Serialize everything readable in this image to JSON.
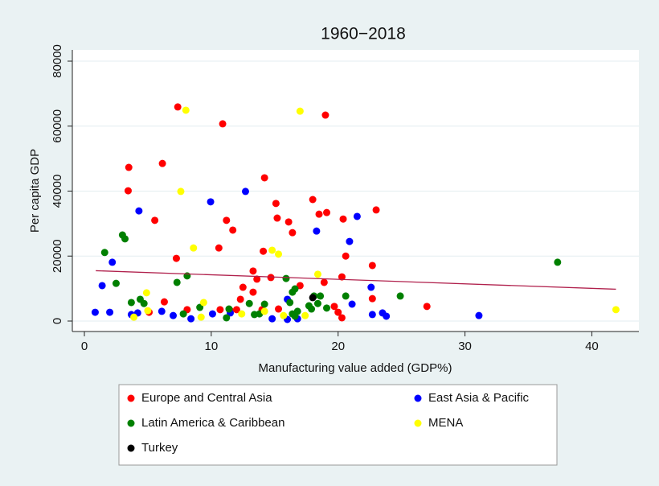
{
  "chart_data": {
    "type": "scatter",
    "title": "1960−2018",
    "x_label": "Manufacturing value added (GDP%)",
    "y_label": "Per capita GDP",
    "xlim": [
      0,
      42
    ],
    "ylim": [
      0,
      80000
    ],
    "xticks": [
      0,
      10,
      20,
      30,
      40
    ],
    "yticks": [
      0,
      20000,
      40000,
      60000,
      80000
    ],
    "grid": true,
    "legend": "bottom",
    "series": [
      {
        "name": "Europe and Central Asia",
        "color": "#ff0000",
        "x": [
          7.36,
          10.9,
          19.0,
          3.5,
          6.15,
          3.45,
          14.2,
          15.1,
          18.0,
          5.55,
          11.2,
          15.2,
          16.1,
          16.4,
          18.5,
          19.1,
          20.4,
          23.0,
          11.7,
          7.25,
          10.6,
          14.1,
          20.6,
          13.3,
          13.6,
          14.7,
          22.7,
          20.3,
          12.5,
          13.3,
          17.0,
          18.9,
          12.3,
          22.7,
          6.3,
          8.1,
          10.7,
          11.5,
          12.0,
          14.0,
          5.1,
          19.7,
          20.0,
          20.3,
          27.0,
          15.3
        ],
        "values": [
          65900,
          60700,
          63400,
          47300,
          48500,
          40100,
          44100,
          36200,
          37400,
          31000,
          31000,
          31700,
          30500,
          27200,
          32900,
          33400,
          31400,
          34200,
          28000,
          19300,
          22500,
          21500,
          20000,
          15400,
          12900,
          13400,
          17100,
          13600,
          10400,
          8900,
          10900,
          11900,
          6700,
          6900,
          5900,
          3500,
          3500,
          3200,
          3500,
          3500,
          2700,
          4500,
          2700,
          1000,
          4500,
          3700
        ]
      },
      {
        "name": "East Asia & Pacific",
        "color": "#0000ff",
        "x": [
          12.7,
          9.95,
          4.3,
          21.5,
          18.3,
          20.9,
          2.2,
          1.4,
          16.0,
          21.1,
          22.6,
          0.85,
          2.0,
          3.7,
          4.2,
          6.1,
          7.0,
          8.4,
          10.1,
          11.5,
          14.8,
          16.0,
          16.8,
          22.7,
          23.5,
          23.8,
          31.1
        ],
        "values": [
          39900,
          36700,
          33900,
          32200,
          27700,
          24500,
          18100,
          10900,
          6700,
          5200,
          10400,
          2700,
          2700,
          2000,
          2500,
          3000,
          1700,
          700,
          2200,
          2500,
          700,
          500,
          700,
          2000,
          2500,
          1500,
          1700
        ]
      },
      {
        "name": "Latin America & Caribbean",
        "color": "#008000",
        "x": [
          1.6,
          3.0,
          3.2,
          2.5,
          3.7,
          4.4,
          4.7,
          7.3,
          8.1,
          9.1,
          11.2,
          11.4,
          13.0,
          13.4,
          13.8,
          14.2,
          15.9,
          16.2,
          16.4,
          16.6,
          16.4,
          16.8,
          17.7,
          17.9,
          18.1,
          18.4,
          18.6,
          19.1,
          20.6,
          24.9,
          37.3,
          7.8,
          16.6
        ],
        "values": [
          21100,
          26500,
          25300,
          11600,
          5700,
          6700,
          5400,
          11900,
          13900,
          4200,
          1000,
          3700,
          5400,
          2000,
          2200,
          5200,
          13100,
          5700,
          8900,
          9900,
          2200,
          3000,
          4700,
          3700,
          7700,
          5400,
          7700,
          4000,
          7700,
          7700,
          18100,
          2200,
          1500
        ]
      },
      {
        "name": "MENA",
        "color": "#ffff00",
        "x": [
          8.0,
          17.0,
          7.6,
          8.6,
          14.8,
          15.3,
          18.4,
          4.9,
          9.4,
          3.9,
          9.2,
          5.0,
          12.4,
          14.2,
          15.7,
          17.4,
          41.9
        ],
        "values": [
          64900,
          64600,
          39900,
          22500,
          21800,
          20600,
          14400,
          8700,
          5700,
          1200,
          1200,
          3200,
          2200,
          3000,
          1700,
          1700,
          3500
        ]
      },
      {
        "name": "Turkey",
        "color": "#000000",
        "x": [
          18.0
        ],
        "values": [
          7200
        ]
      }
    ],
    "fit": {
      "color": "#b0204c",
      "x": [
        0.9,
        41.9
      ],
      "values": [
        15500,
        9800
      ]
    }
  }
}
